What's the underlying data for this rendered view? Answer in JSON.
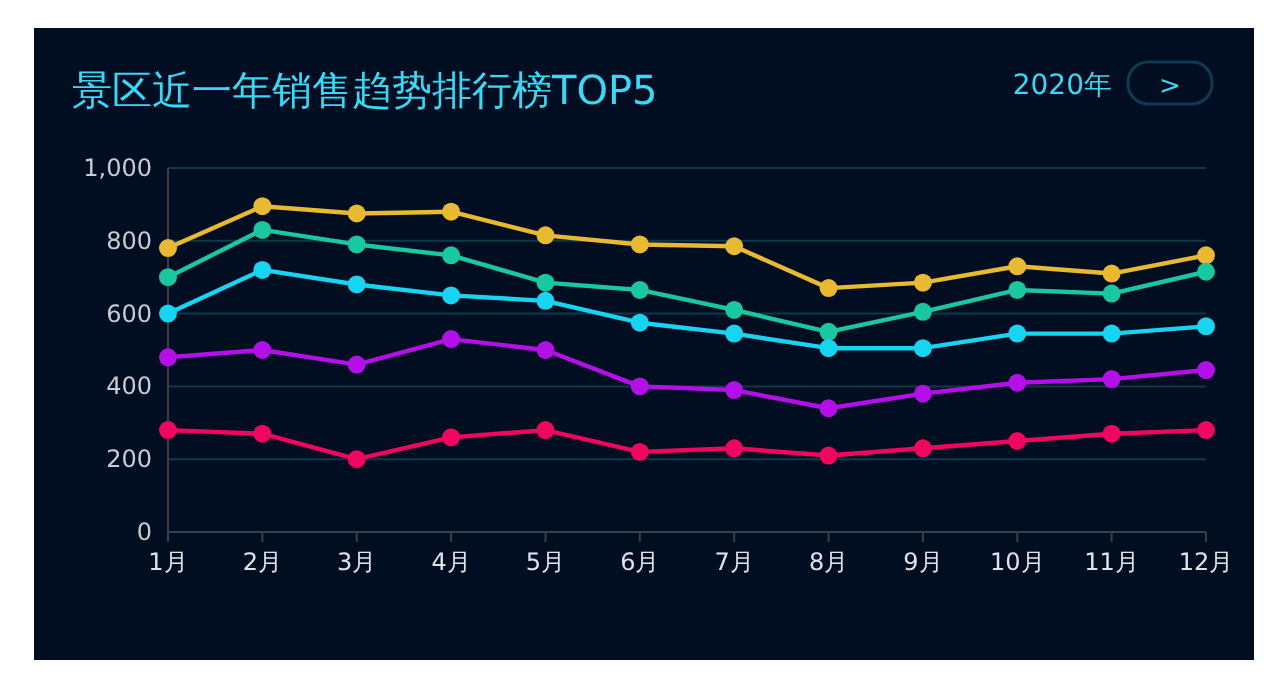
{
  "chart_data": {
    "type": "line",
    "title": "景区近一年销售趋势排行榜TOP5",
    "annotations": [
      "2020年",
      ">"
    ],
    "categories": [
      "1月",
      "2月",
      "3月",
      "4月",
      "5月",
      "6月",
      "7月",
      "8月",
      "9月",
      "10月",
      "11月",
      "12月"
    ],
    "series": [
      {
        "color": "#e8b931",
        "values": [
          780,
          895,
          875,
          880,
          815,
          790,
          785,
          670,
          685,
          730,
          710,
          760
        ]
      },
      {
        "color": "#19c8a0",
        "values": [
          700,
          830,
          790,
          760,
          685,
          665,
          610,
          550,
          605,
          665,
          655,
          715
        ]
      },
      {
        "color": "#17d4f0",
        "values": [
          600,
          720,
          680,
          650,
          635,
          575,
          545,
          505,
          505,
          545,
          545,
          565
        ]
      },
      {
        "color": "#b40fe8",
        "values": [
          480,
          500,
          460,
          530,
          500,
          400,
          390,
          340,
          380,
          410,
          420,
          445
        ]
      },
      {
        "color": "#f0065e",
        "values": [
          280,
          270,
          200,
          260,
          280,
          220,
          230,
          210,
          230,
          250,
          270,
          280
        ]
      }
    ],
    "ylim": [
      0,
      1000
    ],
    "yticks": [
      0,
      {
        "value": 200,
        "label": "200"
      },
      {
        "value": 400,
        "label": "400"
      },
      {
        "value": 600,
        "label": "600"
      },
      {
        "value": 800,
        "label": "800"
      },
      {
        "value": 1000,
        "label": "1,000"
      }
    ],
    "grid": "y",
    "marker": "circle",
    "line_style": "solid"
  }
}
